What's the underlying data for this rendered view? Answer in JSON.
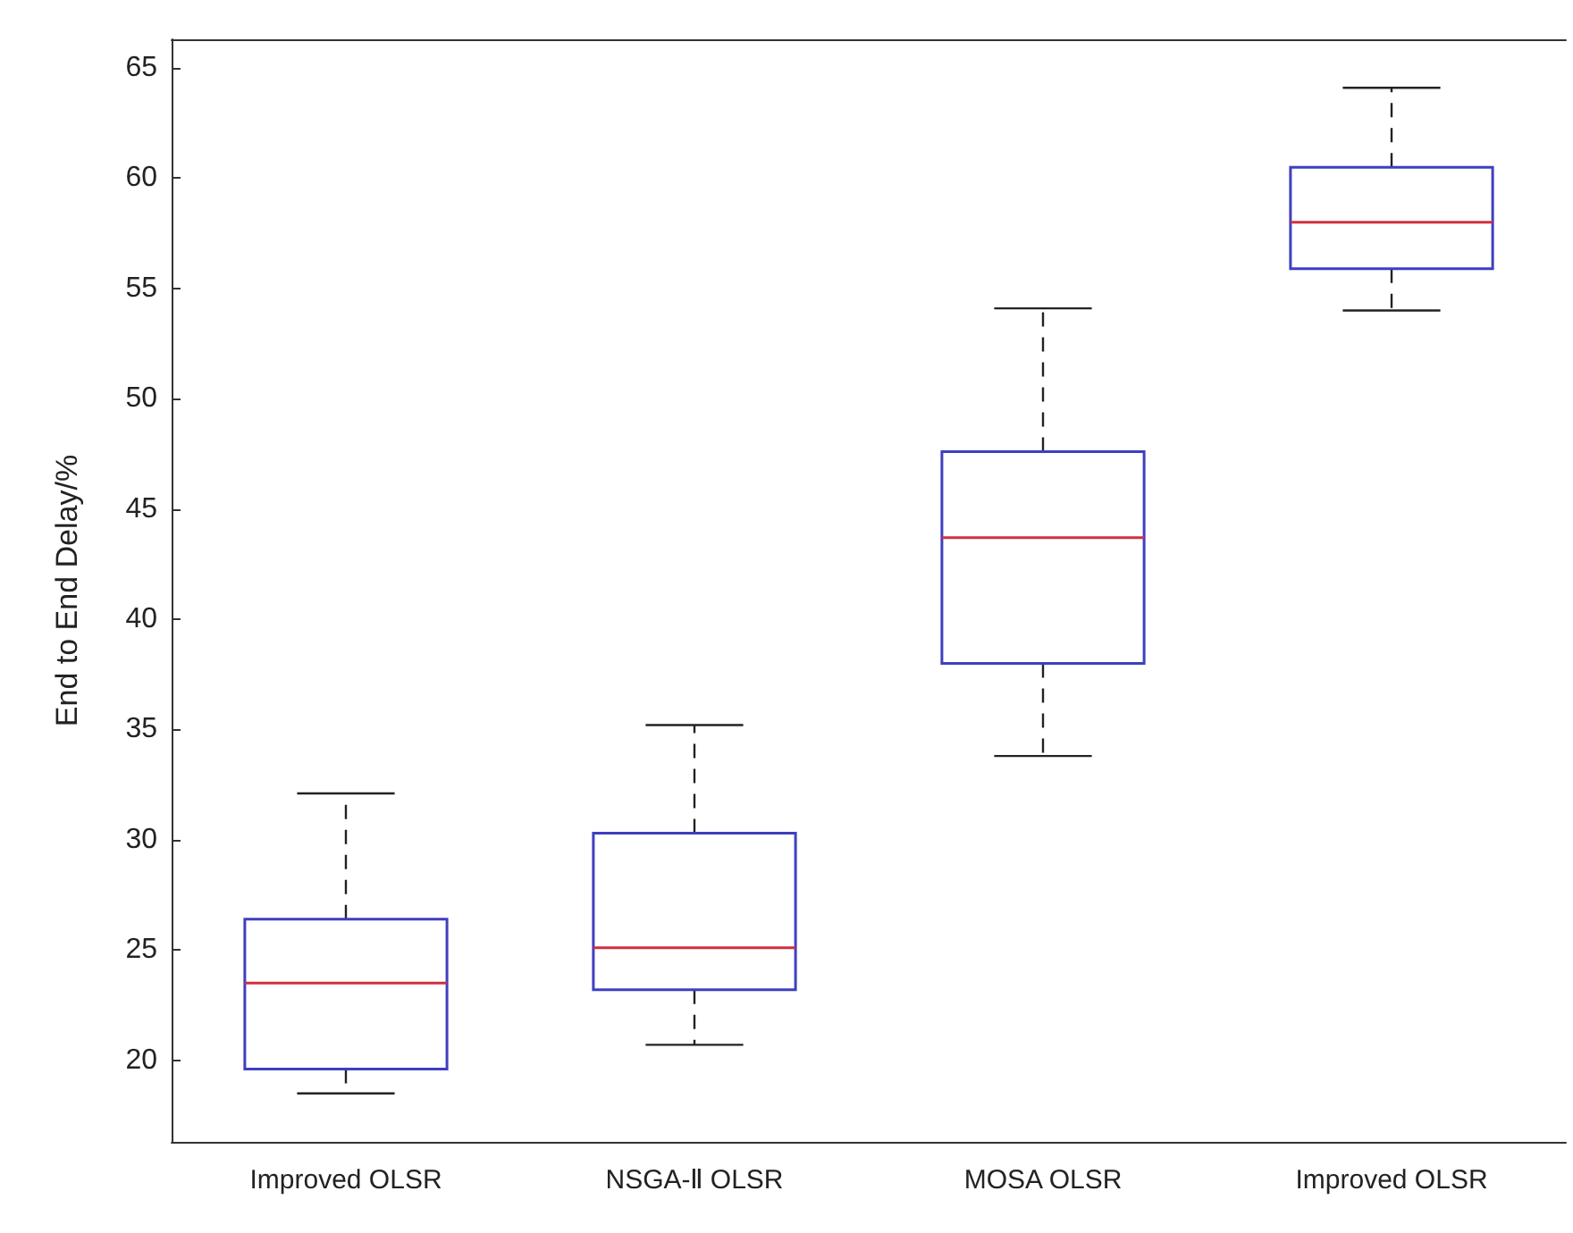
{
  "chart_data": {
    "type": "box",
    "ylabel": "End to End Delay/%",
    "categories": [
      "Improved OLSR",
      "NSGA-Ⅱ OLSR",
      "MOSA OLSR",
      "Improved OLSR"
    ],
    "series": [
      {
        "color": "#3f3fbf",
        "boxes": [
          {
            "low": 18.5,
            "q1": 19.6,
            "median": 23.5,
            "q3": 26.4,
            "high": 32.1
          },
          {
            "low": 20.7,
            "q1": 23.2,
            "median": 25.1,
            "q3": 30.3,
            "high": 35.2
          },
          {
            "low": 33.8,
            "q1": 38.0,
            "median": 43.7,
            "q3": 47.6,
            "high": 54.1
          },
          {
            "low": 54.0,
            "q1": 55.9,
            "median": 58.0,
            "q3": 60.5,
            "high": 64.1
          }
        ]
      }
    ],
    "ylim": [
      16.3,
      66.3
    ],
    "yticks": [
      20,
      25,
      30,
      35,
      40,
      45,
      50,
      55,
      60,
      65
    ],
    "grid": false
  }
}
